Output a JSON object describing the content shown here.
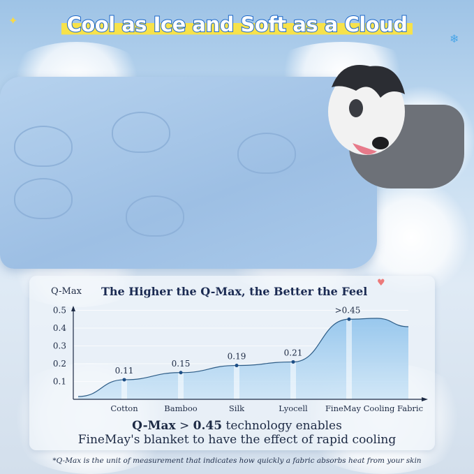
{
  "headline": "Cool as Ice and Soft as a Cloud",
  "chart_data": {
    "type": "area",
    "title": "The Higher the Q-Max, the Better the Feel",
    "ylabel": "Q-Max",
    "xlabel": "",
    "categories": [
      "Cotton",
      "Bamboo",
      "Silk",
      "Lyocell",
      "FineMay Cooling Fabric"
    ],
    "values": [
      0.11,
      0.15,
      0.19,
      0.21,
      0.45
    ],
    "data_labels": [
      "0.11",
      "0.15",
      "0.19",
      "0.21",
      ">0.45"
    ],
    "yticks": [
      "0.1",
      "0.2",
      "0.3",
      "0.4",
      "0.5"
    ],
    "ylim": [
      0,
      0.5
    ],
    "grid": true,
    "colors": {
      "fill": "#8fc3ec",
      "line": "#2d5c86",
      "point": "#1e4f86"
    }
  },
  "summary": {
    "bold1": "Q-Max",
    "mid": " > ",
    "bold2": "0.45",
    "line1_rest": " technology enables",
    "line2": "FineMay's blanket to have the effect of rapid cooling"
  },
  "footnote": "*Q-Max is the unit of measurement that indicates how quickly a fabric absorbs heat from your skin"
}
